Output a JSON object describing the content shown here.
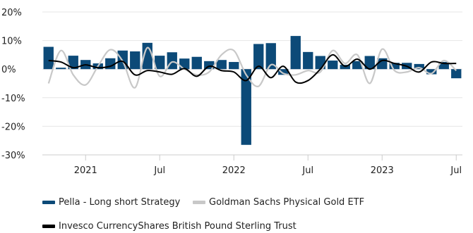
{
  "chart_data": {
    "type": "bar",
    "title": "",
    "xlabel": "",
    "ylabel": "",
    "ylim": [
      -30,
      20
    ],
    "yticks": [
      20,
      10,
      0,
      -10,
      -20,
      -30
    ],
    "ytick_labels": [
      "20%",
      "10%",
      "0%",
      "-10%",
      "-20%",
      "-30%"
    ],
    "xtick_labels": [
      "2021",
      "Jul",
      "2022",
      "Jul",
      "2023",
      "Jul"
    ],
    "xtick_months": [
      "2021-01",
      "2021-07",
      "2022-01",
      "2022-07",
      "2023-01",
      "2023-07"
    ],
    "months": [
      "2020-10",
      "2020-11",
      "2020-12",
      "2021-01",
      "2021-02",
      "2021-03",
      "2021-04",
      "2021-05",
      "2021-06",
      "2021-07",
      "2021-08",
      "2021-09",
      "2021-10",
      "2021-11",
      "2021-12",
      "2022-01",
      "2022-02",
      "2022-03",
      "2022-04",
      "2022-05",
      "2022-06",
      "2022-07",
      "2022-08",
      "2022-09",
      "2022-10",
      "2022-11",
      "2022-12",
      "2023-01",
      "2023-02",
      "2023-03",
      "2023-04",
      "2023-05",
      "2023-06",
      "2023-07"
    ],
    "grid": true,
    "legend_position": "bottom-left",
    "series": [
      {
        "name": "Pella - Long short Strategy",
        "kind": "bar",
        "color": "#0c4a78",
        "values": [
          7.8,
          0.5,
          4.7,
          3.2,
          2.0,
          3.8,
          6.5,
          6.2,
          9.2,
          4.7,
          5.9,
          3.7,
          4.3,
          2.8,
          3.2,
          2.5,
          -26.5,
          8.8,
          9.1,
          -2.0,
          11.6,
          6.0,
          4.6,
          3.0,
          1.5,
          2.8,
          4.6,
          3.8,
          2.2,
          2.2,
          1.8,
          -1.8,
          2.5,
          -3.2
        ]
      },
      {
        "name": "Goldman Sachs Physical Gold ETF",
        "kind": "line",
        "color": "#c8c8c8",
        "values": [
          -5.0,
          6.5,
          -2.0,
          -5.5,
          1.0,
          6.8,
          2.8,
          -6.5,
          7.5,
          -2.5,
          2.5,
          0.0,
          -2.0,
          -1.0,
          5.0,
          6.5,
          -2.0,
          -6.0,
          1.5,
          -1.5,
          -2.0,
          -0.5,
          -1.0,
          6.5,
          2.0,
          5.0,
          -5.0,
          7.0,
          -0.5,
          -1.0,
          0.5,
          -1.5,
          3.0,
          -0.5
        ]
      },
      {
        "name": "Invesco CurrencyShares British Pound Sterling Trust",
        "kind": "line",
        "color": "#000000",
        "values": [
          3.0,
          2.5,
          0.5,
          1.5,
          0.5,
          1.0,
          2.7,
          -2.0,
          -0.5,
          -1.0,
          -1.8,
          0.2,
          -2.5,
          1.0,
          -0.5,
          -1.0,
          -4.0,
          1.0,
          -3.0,
          1.0,
          -4.5,
          -4.0,
          0.0,
          5.0,
          1.0,
          3.5,
          0.0,
          3.0,
          2.0,
          1.0,
          -1.0,
          2.5,
          2.0,
          2.0
        ]
      }
    ]
  }
}
